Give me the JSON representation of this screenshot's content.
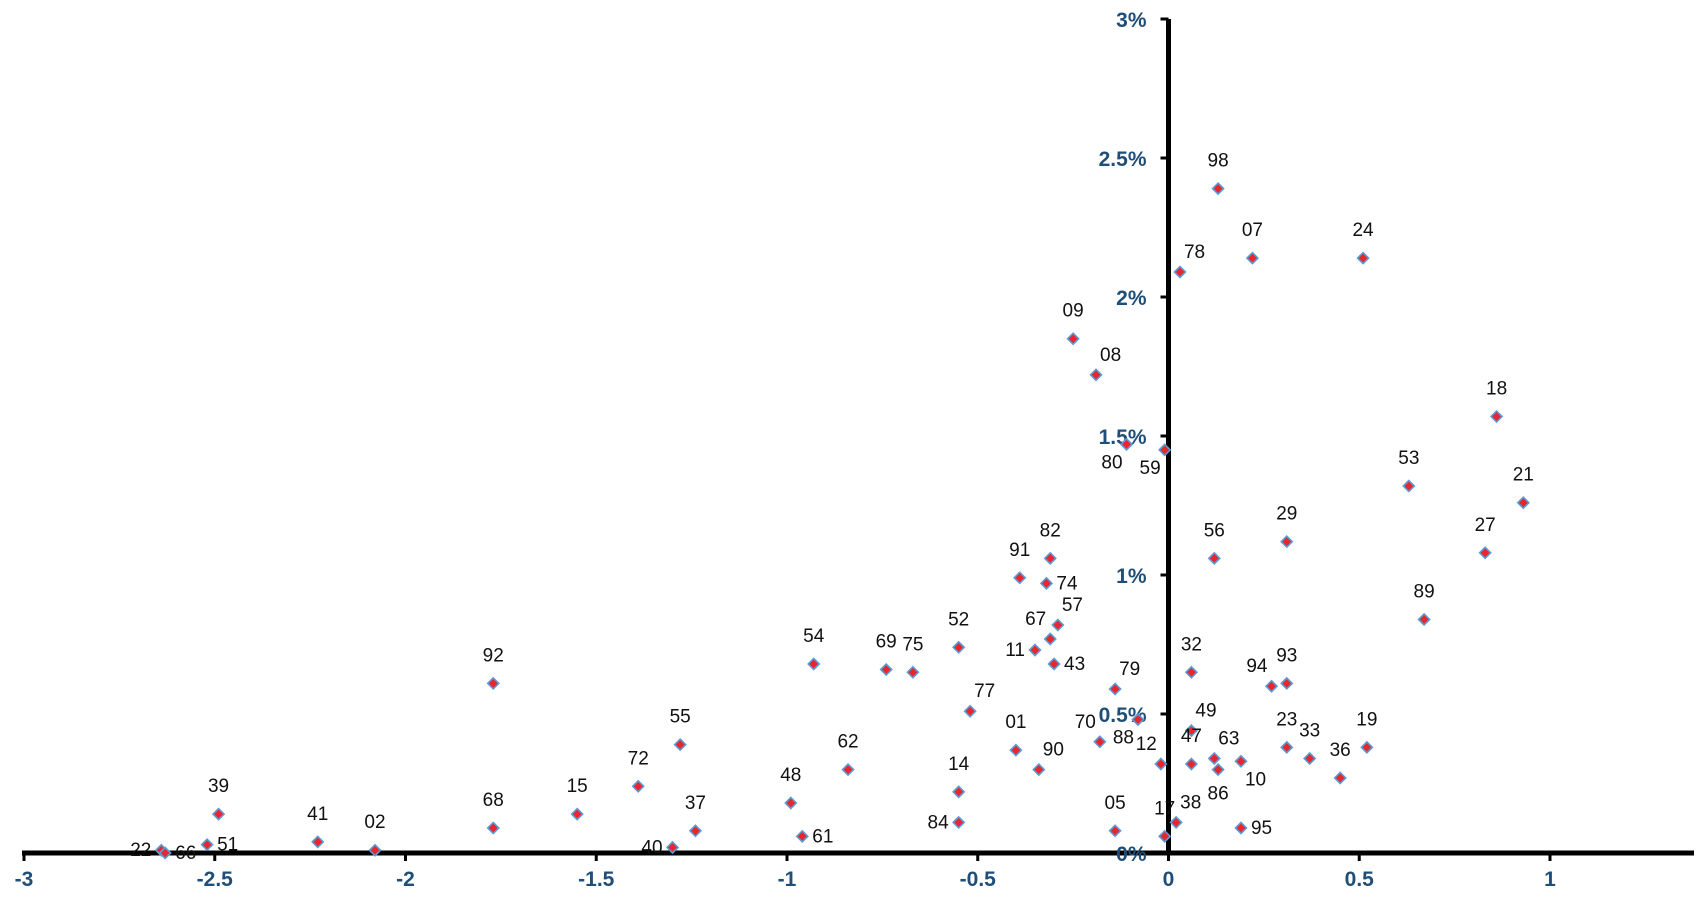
{
  "chart_data": {
    "type": "scatter",
    "title": "",
    "xlabel": "",
    "ylabel": "",
    "xlim": [
      -3,
      1
    ],
    "ylim": [
      0,
      3
    ],
    "x_ticks": [
      -3,
      -2.5,
      -2,
      -1.5,
      -1,
      -0.5,
      0,
      0.5,
      1
    ],
    "x_tick_labels": [
      "-3",
      "-2.5",
      "-2",
      "-1.5",
      "-1",
      "-0.5",
      "0",
      "0.5",
      "1"
    ],
    "y_ticks": [
      0,
      0.5,
      1,
      1.5,
      2,
      2.5,
      3
    ],
    "y_tick_labels": [
      "0%",
      "0.5%",
      "1%",
      "1.5%",
      "2%",
      "2.5%",
      "3%"
    ],
    "grid": false,
    "legend": "none",
    "colors": {
      "axis": "#000000",
      "tick_label": "#1f4e79",
      "marker_fill": "#e8262d",
      "marker_stroke": "#5b9bd5",
      "point_label": "#111111"
    },
    "points": [
      {
        "label": "98",
        "x": 0.13,
        "y": 2.39,
        "pos": "above"
      },
      {
        "label": "07",
        "x": 0.22,
        "y": 2.14,
        "pos": "above"
      },
      {
        "label": "24",
        "x": 0.51,
        "y": 2.14,
        "pos": "above"
      },
      {
        "label": "78",
        "x": 0.03,
        "y": 2.09,
        "pos": "above-right"
      },
      {
        "label": "09",
        "x": -0.25,
        "y": 1.85,
        "pos": "above"
      },
      {
        "label": "08",
        "x": -0.19,
        "y": 1.72,
        "pos": "above-right"
      },
      {
        "label": "18",
        "x": 0.86,
        "y": 1.57,
        "pos": "above"
      },
      {
        "label": "80",
        "x": -0.11,
        "y": 1.47,
        "pos": "below-left"
      },
      {
        "label": "59",
        "x": -0.01,
        "y": 1.45,
        "pos": "below-left"
      },
      {
        "label": "53",
        "x": 0.63,
        "y": 1.32,
        "pos": "above"
      },
      {
        "label": "21",
        "x": 0.93,
        "y": 1.26,
        "pos": "above"
      },
      {
        "label": "29",
        "x": 0.31,
        "y": 1.12,
        "pos": "above"
      },
      {
        "label": "27",
        "x": 0.83,
        "y": 1.08,
        "pos": "above"
      },
      {
        "label": "56",
        "x": 0.12,
        "y": 1.06,
        "pos": "above"
      },
      {
        "label": "82",
        "x": -0.31,
        "y": 1.06,
        "pos": "above"
      },
      {
        "label": "91",
        "x": -0.39,
        "y": 0.99,
        "pos": "above"
      },
      {
        "label": "74",
        "x": -0.32,
        "y": 0.97,
        "pos": "right"
      },
      {
        "label": "89",
        "x": 0.67,
        "y": 0.84,
        "pos": "above"
      },
      {
        "label": "57",
        "x": -0.29,
        "y": 0.82,
        "pos": "above-right"
      },
      {
        "label": "67",
        "x": -0.31,
        "y": 0.77,
        "pos": "above-left"
      },
      {
        "label": "52",
        "x": -0.55,
        "y": 0.74,
        "pos": "above"
      },
      {
        "label": "11",
        "x": -0.35,
        "y": 0.73,
        "pos": "left"
      },
      {
        "label": "54",
        "x": -0.93,
        "y": 0.68,
        "pos": "above"
      },
      {
        "label": "43",
        "x": -0.3,
        "y": 0.68,
        "pos": "right"
      },
      {
        "label": "69",
        "x": -0.74,
        "y": 0.66,
        "pos": "above"
      },
      {
        "label": "75",
        "x": -0.67,
        "y": 0.65,
        "pos": "above"
      },
      {
        "label": "32",
        "x": 0.06,
        "y": 0.65,
        "pos": "above"
      },
      {
        "label": "92",
        "x": -1.77,
        "y": 0.61,
        "pos": "above"
      },
      {
        "label": "93",
        "x": 0.31,
        "y": 0.61,
        "pos": "above"
      },
      {
        "label": "94",
        "x": 0.27,
        "y": 0.6,
        "pos": "above-left"
      },
      {
        "label": "79",
        "x": -0.14,
        "y": 0.59,
        "pos": "above-right"
      },
      {
        "label": "77",
        "x": -0.52,
        "y": 0.51,
        "pos": "above-right"
      },
      {
        "label": "49",
        "x": 0.06,
        "y": 0.44,
        "pos": "above-right"
      },
      {
        "label": "88",
        "x": -0.08,
        "y": 0.48,
        "pos": "below-left"
      },
      {
        "label": "70",
        "x": -0.18,
        "y": 0.4,
        "pos": "above-left"
      },
      {
        "label": "55",
        "x": -1.28,
        "y": 0.39,
        "pos": "above"
      },
      {
        "label": "19",
        "x": 0.52,
        "y": 0.38,
        "pos": "above"
      },
      {
        "label": "23",
        "x": 0.31,
        "y": 0.38,
        "pos": "above"
      },
      {
        "label": "01",
        "x": -0.4,
        "y": 0.37,
        "pos": "above"
      },
      {
        "label": "33",
        "x": 0.37,
        "y": 0.34,
        "pos": "above"
      },
      {
        "label": "63",
        "x": 0.12,
        "y": 0.34,
        "pos": "above-right"
      },
      {
        "label": "10",
        "x": 0.19,
        "y": 0.33,
        "pos": "below-right"
      },
      {
        "label": "12",
        "x": -0.02,
        "y": 0.32,
        "pos": "above-left"
      },
      {
        "label": "47",
        "x": 0.06,
        "y": 0.32,
        "pos": "above"
      },
      {
        "label": "86",
        "x": 0.13,
        "y": 0.3,
        "pos": "below"
      },
      {
        "label": "62",
        "x": -0.84,
        "y": 0.3,
        "pos": "above"
      },
      {
        "label": "90",
        "x": -0.34,
        "y": 0.3,
        "pos": "above-right"
      },
      {
        "label": "36",
        "x": 0.45,
        "y": 0.27,
        "pos": "above"
      },
      {
        "label": "72",
        "x": -1.39,
        "y": 0.24,
        "pos": "above"
      },
      {
        "label": "14",
        "x": -0.55,
        "y": 0.22,
        "pos": "above"
      },
      {
        "label": "48",
        "x": -0.99,
        "y": 0.18,
        "pos": "above"
      },
      {
        "label": "39",
        "x": -2.49,
        "y": 0.14,
        "pos": "above"
      },
      {
        "label": "15",
        "x": -1.55,
        "y": 0.14,
        "pos": "above"
      },
      {
        "label": "84",
        "x": -0.55,
        "y": 0.11,
        "pos": "left"
      },
      {
        "label": "38",
        "x": 0.02,
        "y": 0.11,
        "pos": "above-right"
      },
      {
        "label": "68",
        "x": -1.77,
        "y": 0.09,
        "pos": "above"
      },
      {
        "label": "37",
        "x": -1.24,
        "y": 0.08,
        "pos": "above"
      },
      {
        "label": "05",
        "x": -0.14,
        "y": 0.08,
        "pos": "above"
      },
      {
        "label": "95",
        "x": 0.19,
        "y": 0.09,
        "pos": "right"
      },
      {
        "label": "61",
        "x": -0.96,
        "y": 0.06,
        "pos": "right"
      },
      {
        "label": "17",
        "x": -0.01,
        "y": 0.06,
        "pos": "above"
      },
      {
        "label": "41",
        "x": -2.23,
        "y": 0.04,
        "pos": "above"
      },
      {
        "label": "51",
        "x": -2.52,
        "y": 0.03,
        "pos": "right"
      },
      {
        "label": "40",
        "x": -1.3,
        "y": 0.02,
        "pos": "left"
      },
      {
        "label": "22",
        "x": -2.64,
        "y": 0.01,
        "pos": "left"
      },
      {
        "label": "66",
        "x": -2.63,
        "y": 0.0,
        "pos": "right"
      },
      {
        "label": "02",
        "x": -2.08,
        "y": 0.01,
        "pos": "above"
      }
    ]
  }
}
